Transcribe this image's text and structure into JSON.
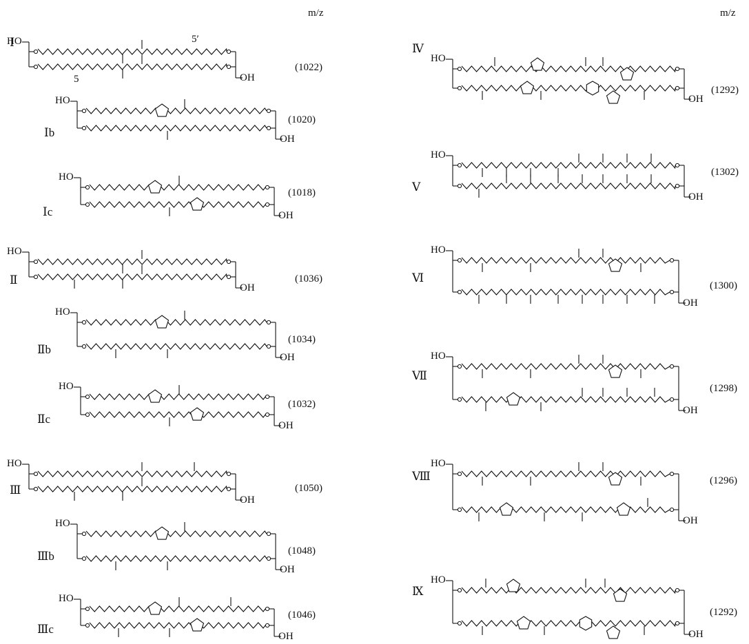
{
  "header": {
    "mz_left": "m/z",
    "mz_right": "m/z"
  },
  "left_column": [
    {
      "label": "Ⅰ",
      "mz": "(1022)",
      "num_5": "5",
      "num_5p": "5′"
    },
    {
      "label": "Ⅰb",
      "mz": "(1020)"
    },
    {
      "label": "Ⅰc",
      "mz": "(1018)"
    },
    {
      "label": "Ⅱ",
      "mz": "(1036)"
    },
    {
      "label": "Ⅱb",
      "mz": "(1034)"
    },
    {
      "label": "Ⅱc",
      "mz": "(1032)"
    },
    {
      "label": "Ⅲ",
      "mz": "(1050)"
    },
    {
      "label": "Ⅲb",
      "mz": "(1048)"
    },
    {
      "label": "Ⅲc",
      "mz": "(1046)"
    }
  ],
  "right_column": [
    {
      "label": "Ⅳ",
      "mz": "(1292)"
    },
    {
      "label": "Ⅴ",
      "mz": "(1302)"
    },
    {
      "label": "Ⅵ",
      "mz": "(1300)"
    },
    {
      "label": "Ⅶ",
      "mz": "(1298)"
    },
    {
      "label": "Ⅷ",
      "mz": "(1296)"
    },
    {
      "label": "Ⅸ",
      "mz": "(1292)"
    }
  ],
  "groups": {
    "ho": "HO",
    "oh": "OH"
  }
}
